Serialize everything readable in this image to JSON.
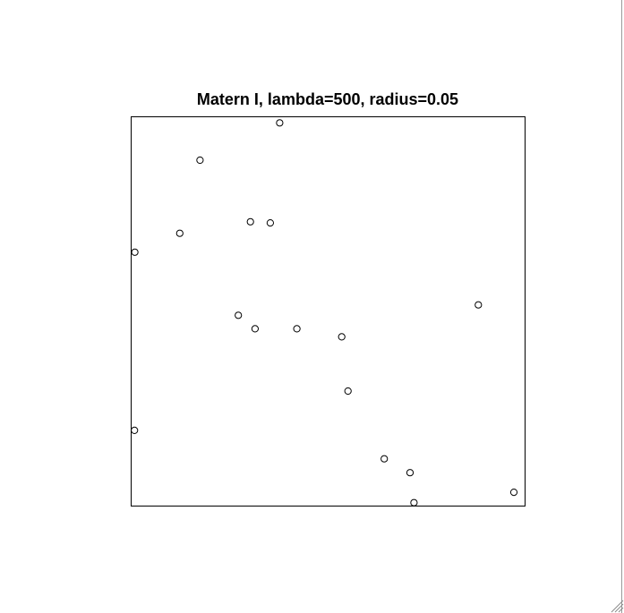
{
  "chart_data": {
    "type": "scatter",
    "title": "Matern I, lambda=500, radius=0.05",
    "xlim": [
      0,
      1
    ],
    "ylim": [
      0,
      1
    ],
    "axes_visible": false,
    "grid": false,
    "marker": "open-circle",
    "point_color": "#000000",
    "points": [
      {
        "x": 0.377,
        "y": 0.99
      },
      {
        "x": 0.173,
        "y": 0.893
      },
      {
        "x": 0.302,
        "y": 0.733
      },
      {
        "x": 0.353,
        "y": 0.73
      },
      {
        "x": 0.121,
        "y": 0.703
      },
      {
        "x": 0.006,
        "y": 0.654
      },
      {
        "x": 0.886,
        "y": 0.517
      },
      {
        "x": 0.271,
        "y": 0.49
      },
      {
        "x": 0.314,
        "y": 0.455
      },
      {
        "x": 0.421,
        "y": 0.455
      },
      {
        "x": 0.536,
        "y": 0.434
      },
      {
        "x": 0.552,
        "y": 0.293
      },
      {
        "x": 0.005,
        "y": 0.191
      },
      {
        "x": 0.645,
        "y": 0.117
      },
      {
        "x": 0.711,
        "y": 0.081
      },
      {
        "x": 0.977,
        "y": 0.03
      },
      {
        "x": 0.721,
        "y": 0.003
      }
    ]
  }
}
